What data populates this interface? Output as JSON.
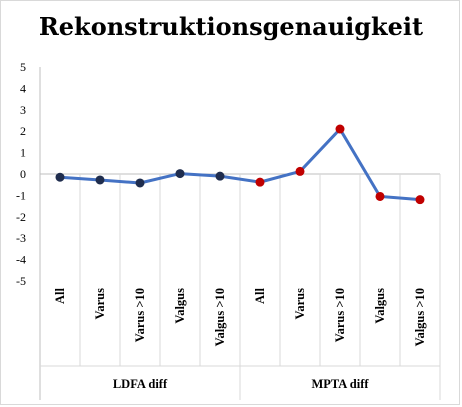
{
  "chart_data": {
    "type": "line",
    "title": "Rekonstruktionsgenauigkeit",
    "ylim": [
      -5,
      5
    ],
    "yticks": [
      "5",
      "4",
      "3",
      "2",
      "1",
      "0",
      "-1",
      "-2",
      "-3",
      "-4",
      "-5"
    ],
    "categories": [
      "All",
      "Varus",
      "Varus >10",
      "Valgus",
      "Valgus >10",
      "All",
      "Varus",
      "Varus >10",
      "Valgus",
      "Valgus >10"
    ],
    "groups": [
      {
        "label": "LDFA diff",
        "span": [
          0,
          4
        ]
      },
      {
        "label": "MPTA diff",
        "span": [
          5,
          9
        ]
      }
    ],
    "values": [
      -0.15,
      -0.28,
      -0.42,
      0.02,
      -0.1,
      -0.38,
      0.12,
      2.1,
      -1.05,
      -1.2
    ],
    "line_color": "#4472c4",
    "marker_colors": [
      "#1f2d4e",
      "#1f2d4e",
      "#1f2d4e",
      "#1f2d4e",
      "#1f2d4e",
      "#c00000",
      "#c00000",
      "#c00000",
      "#c00000",
      "#c00000"
    ],
    "grid": false,
    "legend": "none"
  }
}
